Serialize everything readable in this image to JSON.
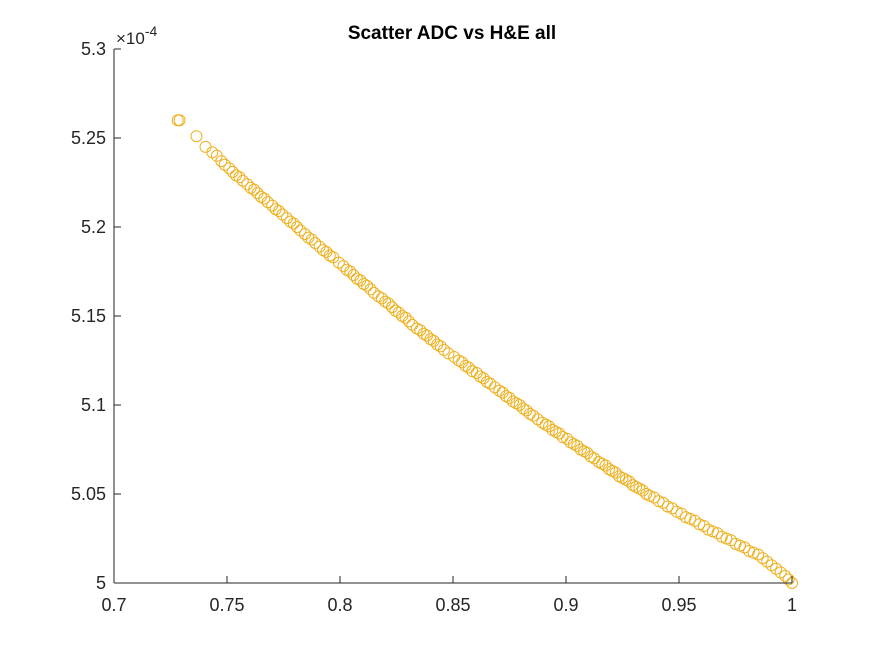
{
  "chart_data": {
    "type": "scatter",
    "title": "Scatter ADC vs H&E all",
    "xlabel": "",
    "ylabel": "",
    "xlim": [
      0.7,
      1.0
    ],
    "ylim": [
      0.0005,
      0.00053
    ],
    "x_ticks": [
      0.7,
      0.75,
      0.8,
      0.85,
      0.9,
      0.95,
      1.0
    ],
    "x_tick_labels": [
      "0.7",
      "0.75",
      "0.8",
      "0.85",
      "0.9",
      "0.95",
      "1"
    ],
    "y_ticks": [
      0.0005,
      0.000505,
      0.00051,
      0.000515,
      0.00052,
      0.000525,
      0.00053
    ],
    "y_tick_labels": [
      "5",
      "5.05",
      "5.1",
      "5.15",
      "5.2",
      "5.25",
      "5.3"
    ],
    "y_exponent_label": "×10",
    "y_exponent_power": "-4",
    "y_scale_factor": 0.0001,
    "grid": false,
    "legend": "none",
    "marker": "open-circle",
    "marker_color": "#EDB120",
    "axis_color": "#262626",
    "series": [
      {
        "points": [
          [
            0.7282,
            0.000526
          ],
          [
            0.729,
            0.000526
          ],
          [
            0.7365,
            0.0005251
          ],
          [
            0.7405,
            0.0005245
          ],
          [
            0.7435,
            0.0005242
          ],
          [
            0.7455,
            0.000524
          ],
          [
            0.7475,
            0.0005237
          ],
          [
            0.749,
            0.0005235
          ],
          [
            0.751,
            0.0005233
          ],
          [
            0.7525,
            0.0005231
          ],
          [
            0.754,
            0.0005229
          ],
          [
            0.7555,
            0.0005228
          ],
          [
            0.757,
            0.0005226
          ],
          [
            0.759,
            0.0005224
          ],
          [
            0.7605,
            0.0005222
          ],
          [
            0.762,
            0.0005221
          ],
          [
            0.7635,
            0.0005219
          ],
          [
            0.765,
            0.0005217
          ],
          [
            0.7665,
            0.0005216
          ],
          [
            0.768,
            0.0005214
          ],
          [
            0.77,
            0.0005212
          ],
          [
            0.7715,
            0.000521
          ],
          [
            0.773,
            0.0005209
          ],
          [
            0.7745,
            0.0005207
          ],
          [
            0.7765,
            0.0005205
          ],
          [
            0.778,
            0.0005203
          ],
          [
            0.7795,
            0.0005202
          ],
          [
            0.781,
            0.00052
          ],
          [
            0.7825,
            0.0005198
          ],
          [
            0.7845,
            0.0005196
          ],
          [
            0.786,
            0.0005194
          ],
          [
            0.7875,
            0.0005193
          ],
          [
            0.789,
            0.0005191
          ],
          [
            0.791,
            0.0005189
          ],
          [
            0.7925,
            0.0005187
          ],
          [
            0.794,
            0.0005186
          ],
          [
            0.7955,
            0.0005184
          ],
          [
            0.797,
            0.0005183
          ],
          [
            0.7995,
            0.000518
          ],
          [
            0.8015,
            0.0005178
          ],
          [
            0.803,
            0.0005176
          ],
          [
            0.8045,
            0.0005175
          ],
          [
            0.806,
            0.0005173
          ],
          [
            0.8075,
            0.0005171
          ],
          [
            0.809,
            0.000517
          ],
          [
            0.8105,
            0.0005168
          ],
          [
            0.812,
            0.0005167
          ],
          [
            0.8135,
            0.0005165
          ],
          [
            0.815,
            0.0005163
          ],
          [
            0.817,
            0.0005161
          ],
          [
            0.8185,
            0.000516
          ],
          [
            0.82,
            0.0005158
          ],
          [
            0.8215,
            0.0005157
          ],
          [
            0.823,
            0.0005155
          ],
          [
            0.8245,
            0.0005153
          ],
          [
            0.826,
            0.0005152
          ],
          [
            0.8275,
            0.000515
          ],
          [
            0.829,
            0.0005149
          ],
          [
            0.8305,
            0.0005147
          ],
          [
            0.832,
            0.0005145
          ],
          [
            0.834,
            0.0005143
          ],
          [
            0.8355,
            0.0005142
          ],
          [
            0.837,
            0.000514
          ],
          [
            0.8385,
            0.0005139
          ],
          [
            0.84,
            0.0005137
          ],
          [
            0.8415,
            0.0005136
          ],
          [
            0.843,
            0.0005134
          ],
          [
            0.8445,
            0.0005133
          ],
          [
            0.846,
            0.0005131
          ],
          [
            0.848,
            0.0005129
          ],
          [
            0.8505,
            0.0005127
          ],
          [
            0.8525,
            0.0005125
          ],
          [
            0.854,
            0.0005124
          ],
          [
            0.8555,
            0.0005122
          ],
          [
            0.857,
            0.0005121
          ],
          [
            0.8585,
            0.0005119
          ],
          [
            0.8605,
            0.0005118
          ],
          [
            0.862,
            0.0005116
          ],
          [
            0.8635,
            0.0005115
          ],
          [
            0.865,
            0.0005113
          ],
          [
            0.8665,
            0.0005112
          ],
          [
            0.8685,
            0.000511
          ],
          [
            0.8705,
            0.0005108
          ],
          [
            0.872,
            0.0005107
          ],
          [
            0.8735,
            0.0005105
          ],
          [
            0.875,
            0.0005104
          ],
          [
            0.8765,
            0.0005102
          ],
          [
            0.878,
            0.0005101
          ],
          [
            0.8795,
            0.00051
          ],
          [
            0.881,
            0.0005098
          ],
          [
            0.8825,
            0.0005097
          ],
          [
            0.884,
            0.0005095
          ],
          [
            0.8855,
            0.0005094
          ],
          [
            0.8875,
            0.0005092
          ],
          [
            0.8895,
            0.000509
          ],
          [
            0.891,
            0.0005089
          ],
          [
            0.8925,
            0.0005088
          ],
          [
            0.894,
            0.0005086
          ],
          [
            0.8955,
            0.0005085
          ],
          [
            0.897,
            0.0005084
          ],
          [
            0.8985,
            0.0005082
          ],
          [
            0.9005,
            0.0005081
          ],
          [
            0.902,
            0.0005079
          ],
          [
            0.9035,
            0.0005078
          ],
          [
            0.905,
            0.0005077
          ],
          [
            0.9065,
            0.0005075
          ],
          [
            0.908,
            0.0005074
          ],
          [
            0.9095,
            0.0005073
          ],
          [
            0.911,
            0.0005071
          ],
          [
            0.9125,
            0.000507
          ],
          [
            0.9145,
            0.0005068
          ],
          [
            0.916,
            0.0005067
          ],
          [
            0.9175,
            0.0005066
          ],
          [
            0.919,
            0.0005064
          ],
          [
            0.9205,
            0.0005063
          ],
          [
            0.922,
            0.0005062
          ],
          [
            0.9235,
            0.000506
          ],
          [
            0.925,
            0.0005059
          ],
          [
            0.9265,
            0.0005058
          ],
          [
            0.928,
            0.0005057
          ],
          [
            0.9295,
            0.0005055
          ],
          [
            0.931,
            0.0005054
          ],
          [
            0.9325,
            0.0005053
          ],
          [
            0.934,
            0.0005052
          ],
          [
            0.9355,
            0.000505
          ],
          [
            0.937,
            0.0005049
          ],
          [
            0.939,
            0.0005048
          ],
          [
            0.941,
            0.0005046
          ],
          [
            0.943,
            0.0005045
          ],
          [
            0.945,
            0.0005043
          ],
          [
            0.947,
            0.0005042
          ],
          [
            0.949,
            0.000504
          ],
          [
            0.951,
            0.0005039
          ],
          [
            0.953,
            0.0005037
          ],
          [
            0.955,
            0.0005036
          ],
          [
            0.957,
            0.0005035
          ],
          [
            0.959,
            0.0005033
          ],
          [
            0.961,
            0.0005032
          ],
          [
            0.963,
            0.000503
          ],
          [
            0.965,
            0.0005029
          ],
          [
            0.967,
            0.0005028
          ],
          [
            0.969,
            0.0005026
          ],
          [
            0.971,
            0.0005025
          ],
          [
            0.973,
            0.0005024
          ],
          [
            0.975,
            0.0005022
          ],
          [
            0.977,
            0.0005021
          ],
          [
            0.979,
            0.000502
          ],
          [
            0.981,
            0.0005018
          ],
          [
            0.983,
            0.0005017
          ],
          [
            0.985,
            0.0005016
          ],
          [
            0.987,
            0.0005014
          ],
          [
            0.989,
            0.0005012
          ],
          [
            0.991,
            0.000501
          ],
          [
            0.993,
            0.0005008
          ],
          [
            0.995,
            0.0005006
          ],
          [
            0.997,
            0.0005004
          ],
          [
            0.9985,
            0.0005002
          ],
          [
            1.0,
            0.0005
          ]
        ]
      }
    ]
  }
}
